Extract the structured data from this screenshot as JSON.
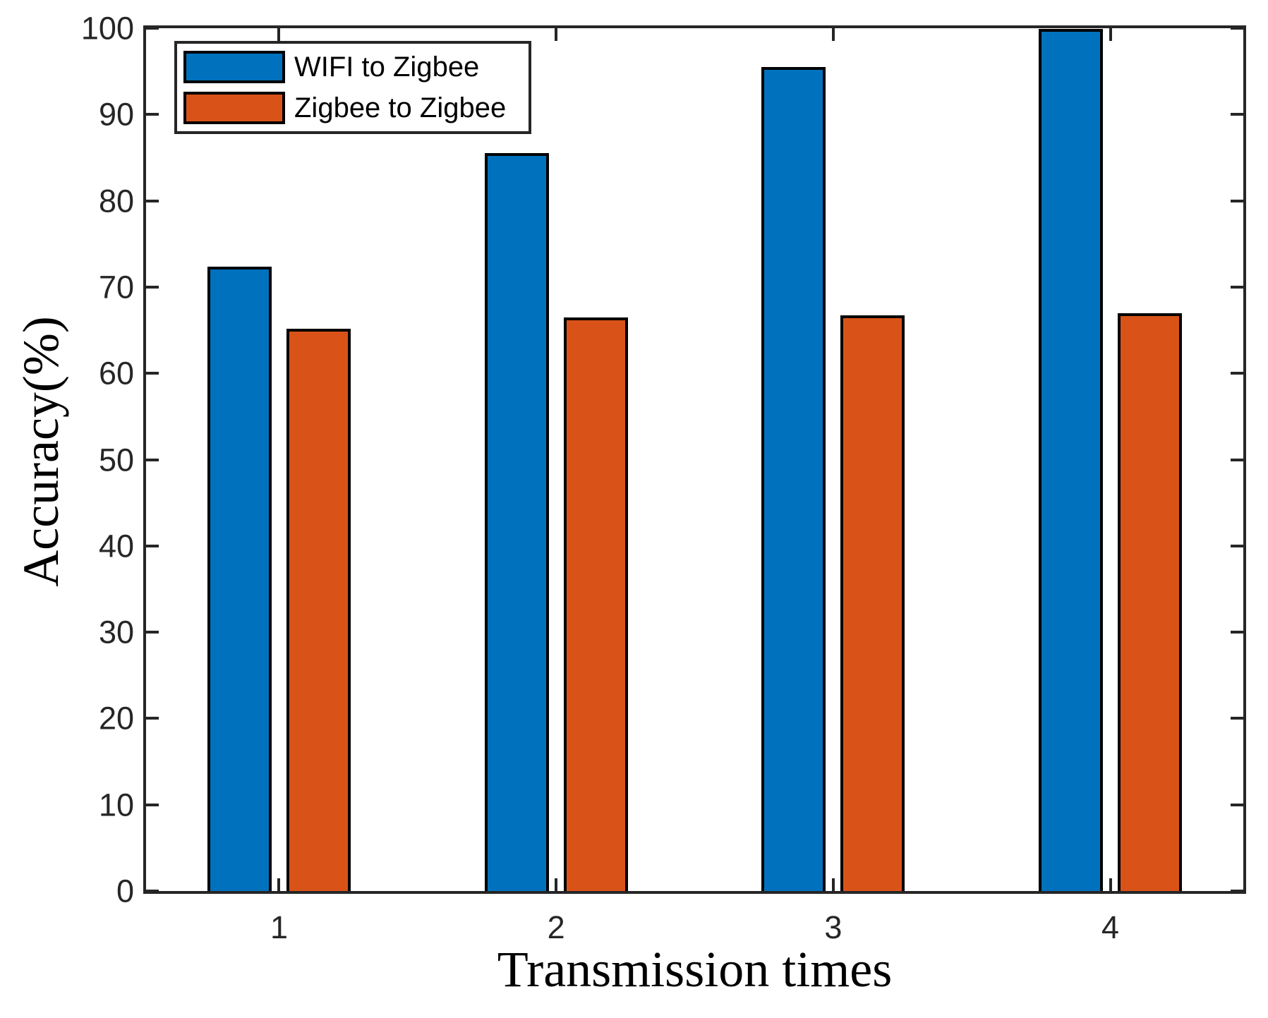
{
  "figure": {
    "background": "#FFFFFF",
    "axis_color": "#262626",
    "bar_edge_color": "#000000"
  },
  "chart_data": {
    "type": "bar",
    "title": "",
    "xlabel": "Transmission times",
    "ylabel": "Accuracy(%)",
    "categories": [
      "1",
      "2",
      "3",
      "4"
    ],
    "series": [
      {
        "name": "WIFI to Zigbee",
        "color": "#0072BD",
        "edge_color": "#000000",
        "values": [
          72.4,
          85.5,
          95.5,
          99.9
        ]
      },
      {
        "name": "Zigbee to Zigbee",
        "color": "#D95319",
        "edge_color": "#000000",
        "values": [
          65.2,
          66.5,
          66.7,
          67.0
        ]
      }
    ],
    "ylim": [
      0,
      100
    ],
    "xlim": [
      0.52,
      4.48
    ],
    "yticks": [
      0,
      10,
      20,
      30,
      40,
      50,
      60,
      70,
      80,
      90,
      100
    ],
    "ytick_labels": [
      "0",
      "10",
      "20",
      "30",
      "40",
      "50",
      "60",
      "70",
      "80",
      "90",
      "100"
    ],
    "xtick_labels": [
      "1",
      "2",
      "3",
      "4"
    ],
    "grid": false,
    "legend_position": "top-left",
    "bar_layout": "grouped"
  }
}
